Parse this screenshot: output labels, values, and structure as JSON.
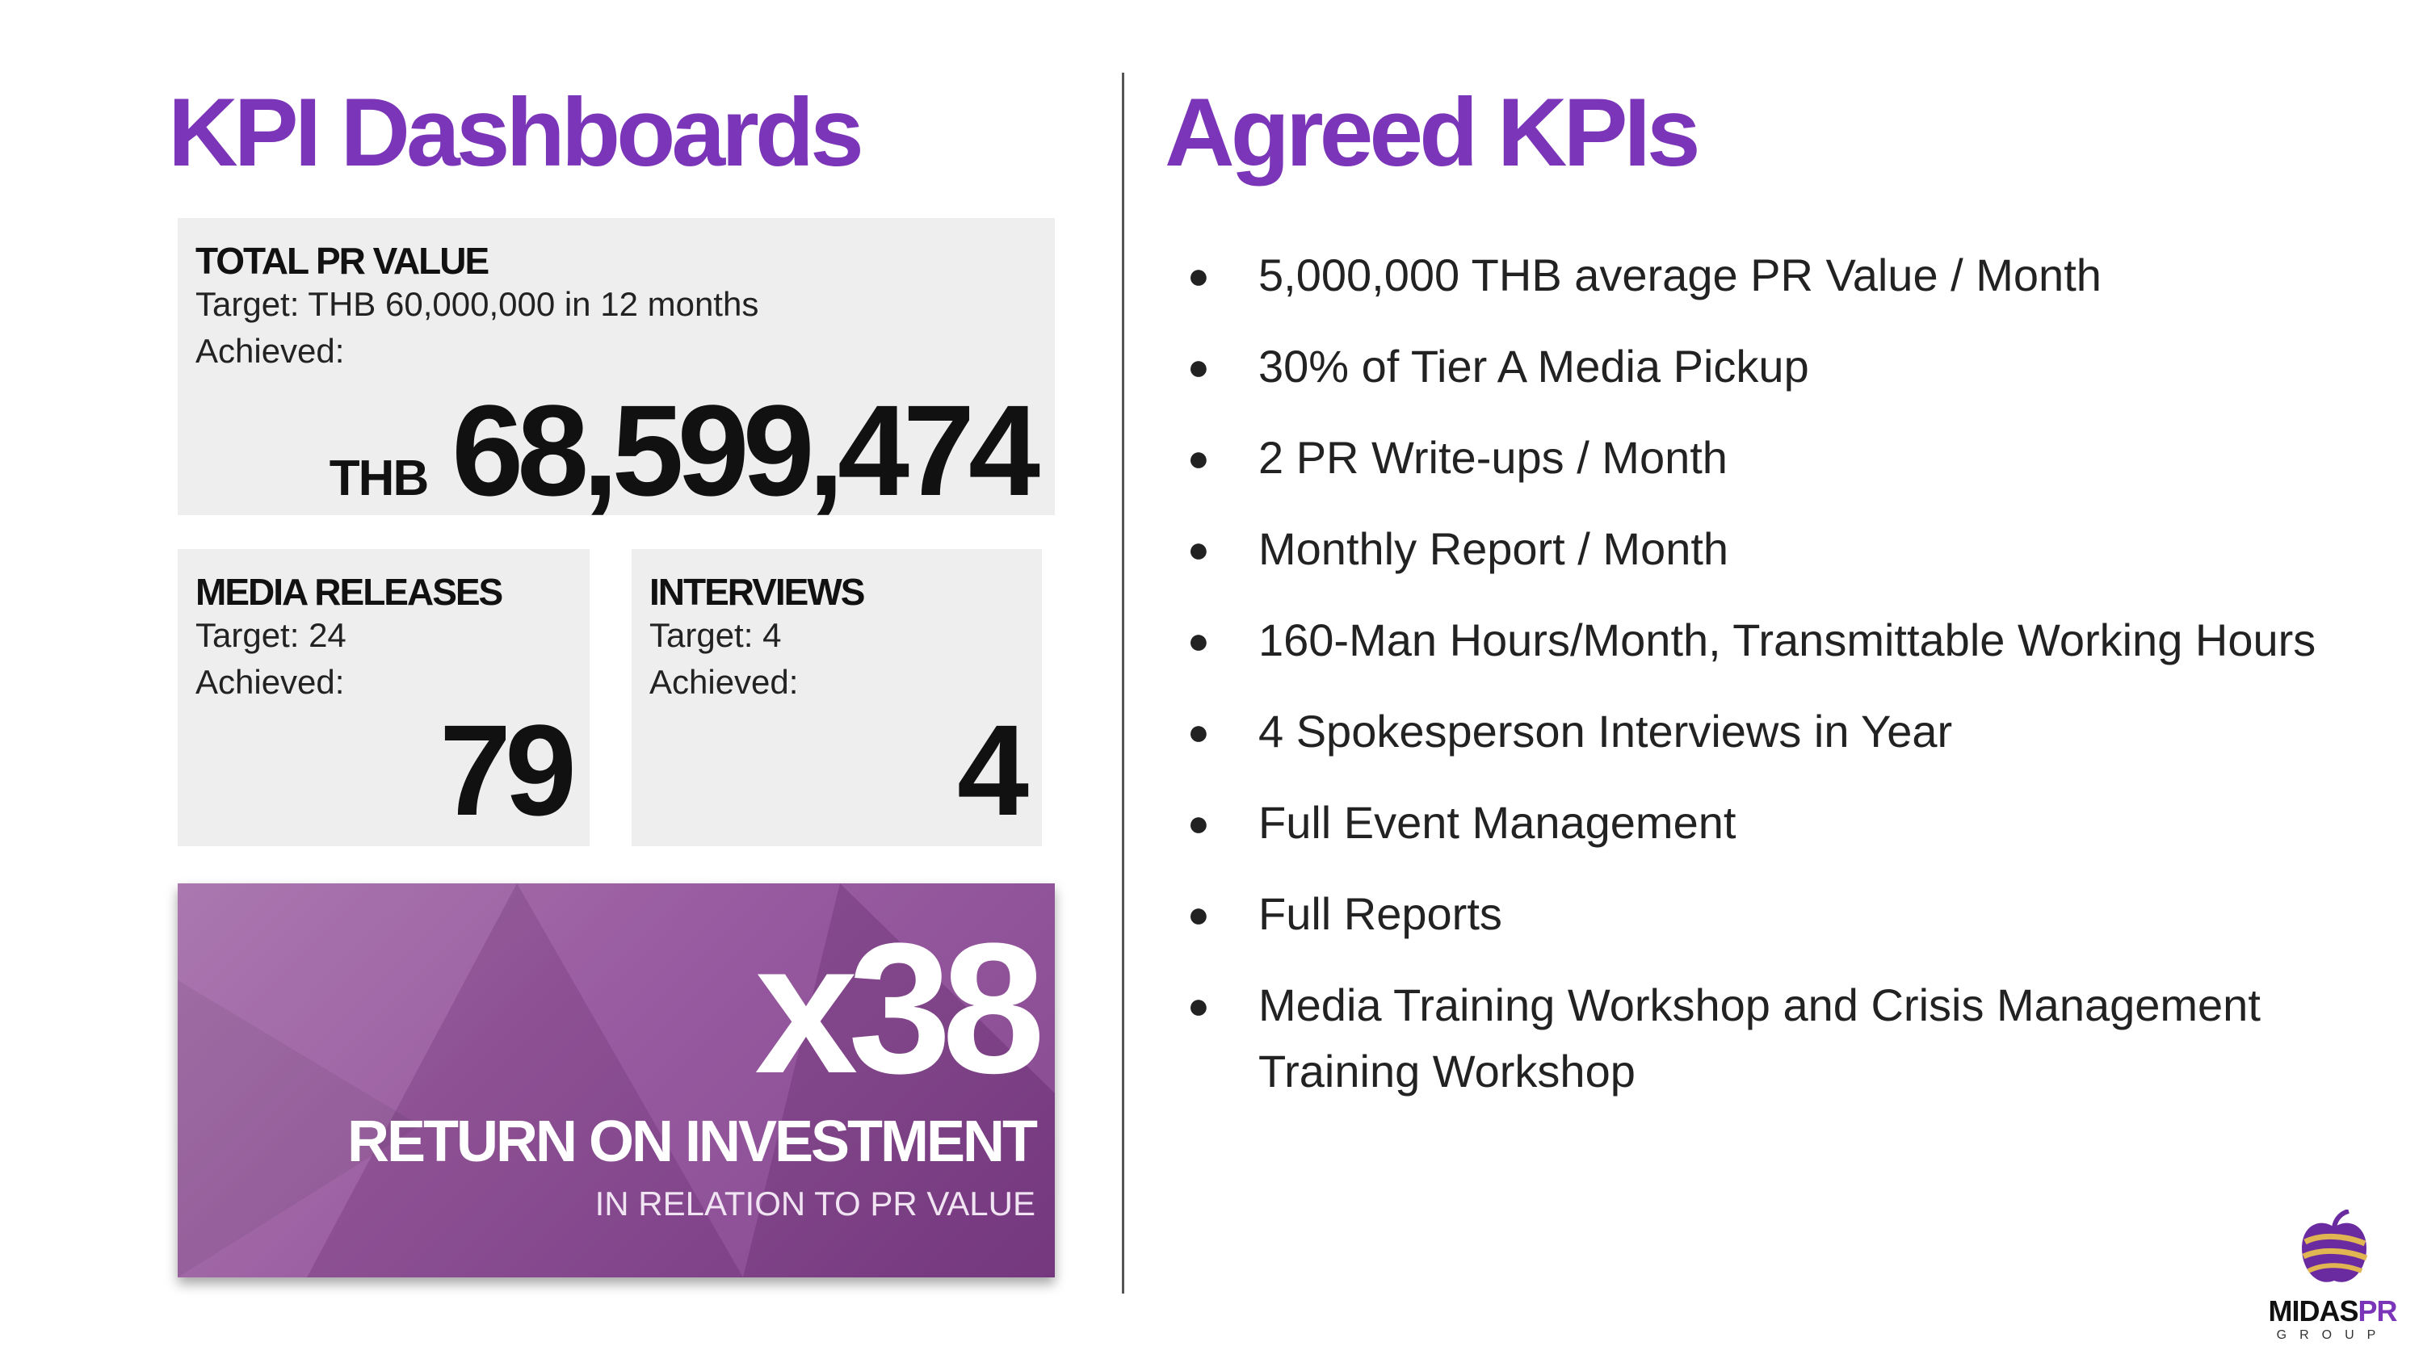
{
  "left": {
    "title": "KPI Dashboards",
    "total_pr": {
      "heading": "TOTAL PR VALUE",
      "target": "Target: THB 60,000,000 in 12 months",
      "achieved_label": "Achieved:",
      "currency": "THB",
      "value": "68,599,474"
    },
    "media_releases": {
      "heading": "MEDIA RELEASES",
      "target": "Target: 24",
      "achieved_label": "Achieved:",
      "value": "79"
    },
    "interviews": {
      "heading": "INTERVIEWS",
      "target": "Target: 4",
      "achieved_label": "Achieved:",
      "value": "4"
    },
    "roi": {
      "multiplier": "x38",
      "label": "RETURN ON INVESTMENT",
      "sub": "IN RELATION TO PR VALUE"
    }
  },
  "right": {
    "title": "Agreed KPIs",
    "bullet_symbol": "●",
    "items": [
      "5,000,000 THB average PR Value / Month",
      "30% of Tier A Media Pickup",
      "2 PR Write-ups / Month",
      "Monthly Report / Month",
      "160-Man Hours/Month, Transmittable Working Hours",
      "4 Spokesperson Interviews in Year",
      "Full Event Management",
      "Full Reports",
      "Media Training Workshop and Crisis Management Training Workshop"
    ]
  },
  "logo": {
    "name_a": "MIDAS",
    "name_b": "PR",
    "group": "GROUP",
    "icon": "midas-apple-icon"
  },
  "colors": {
    "accent": "#7b35b8",
    "card_bg": "#eeeeee",
    "roi_bg": "#93539b"
  }
}
